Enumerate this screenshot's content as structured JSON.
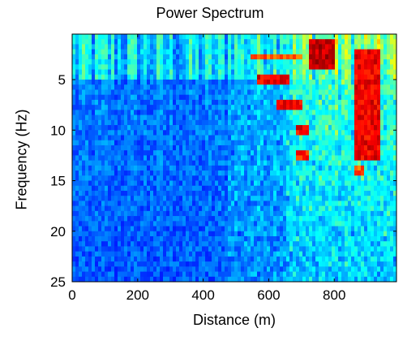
{
  "chart_data": {
    "type": "heatmap",
    "title": "Power Spectrum",
    "xlabel": "Distance (m)",
    "ylabel": "Frequency (Hz)",
    "xlim": [
      0,
      990
    ],
    "ylim": [
      0.5,
      25
    ],
    "y_reversed": true,
    "xticks": [
      0,
      200,
      400,
      600,
      800
    ],
    "yticks": [
      5,
      10,
      15,
      20,
      25
    ],
    "colormap": "jet",
    "colormap_stops": [
      "#00008f",
      "#0000ff",
      "#00ffff",
      "#ffff00",
      "#ff0000",
      "#800000"
    ],
    "value_range": [
      0,
      1
    ],
    "grid": false,
    "hot_regions": [
      {
        "x_range": [
          720,
          800
        ],
        "y_range": [
          1,
          4
        ],
        "level": 1.0
      },
      {
        "x_range": [
          560,
          660
        ],
        "y_range": [
          4.5,
          5.3
        ],
        "level": 0.95
      },
      {
        "x_range": [
          620,
          700
        ],
        "y_range": [
          7,
          8
        ],
        "level": 0.95
      },
      {
        "x_range": [
          680,
          720
        ],
        "y_range": [
          9.5,
          10.5
        ],
        "level": 0.95
      },
      {
        "x_range": [
          680,
          720
        ],
        "y_range": [
          12,
          12.8
        ],
        "level": 0.9
      },
      {
        "x_range": [
          860,
          940
        ],
        "y_range": [
          2,
          13
        ],
        "level": 0.95
      },
      {
        "x_range": [
          860,
          890
        ],
        "y_range": [
          13.5,
          14.5
        ],
        "level": 0.85
      },
      {
        "x_range": [
          540,
          700
        ],
        "y_range": [
          2.5,
          3.2
        ],
        "level": 0.85
      }
    ]
  }
}
